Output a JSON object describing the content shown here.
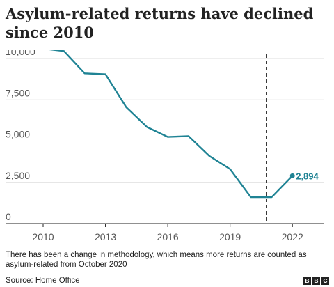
{
  "title": "Asylum-related returns have declined since 2010",
  "note": "There has been a change in methodology, which means more returns are counted as asylum-related from October 2020",
  "source": "Source: Home Office",
  "logo": [
    "B",
    "B",
    "C"
  ],
  "colors": {
    "line": "#1f8394",
    "text": "#222222",
    "grid": "#dddddd",
    "axis": "#222222",
    "tick_text": "#555555",
    "divider": "#222222"
  },
  "chart_data": {
    "type": "line",
    "title": "Asylum-related returns have declined since 2010",
    "xlabel": "",
    "ylabel": "",
    "xlim": [
      2010,
      2023.5
    ],
    "ylim": [
      0,
      10000
    ],
    "x_ticks": [
      2010,
      2013,
      2016,
      2019,
      2022
    ],
    "x_tick_labels": [
      "2010",
      "2013",
      "2016",
      "2019",
      "2022"
    ],
    "y_ticks": [
      0,
      2500,
      5000,
      7500,
      10000
    ],
    "y_tick_labels": [
      "0",
      "2,500",
      "5,000",
      "7,500",
      "10,000"
    ],
    "grid": "horizontal",
    "legend": "none",
    "series": [
      {
        "x": [
          2010,
          2011,
          2012,
          2013,
          2014,
          2015,
          2016,
          2017,
          2018,
          2019,
          2020,
          2021,
          2022
        ],
        "y": [
          10600,
          10450,
          9100,
          9050,
          7050,
          5850,
          5250,
          5300,
          4100,
          3300,
          1600,
          1600,
          2894
        ]
      }
    ],
    "annotations": [
      {
        "type": "vertical-dashed-line",
        "x": 2020.75
      },
      {
        "type": "end-label",
        "x": 2022,
        "y": 2894,
        "text": "2,894"
      }
    ]
  }
}
